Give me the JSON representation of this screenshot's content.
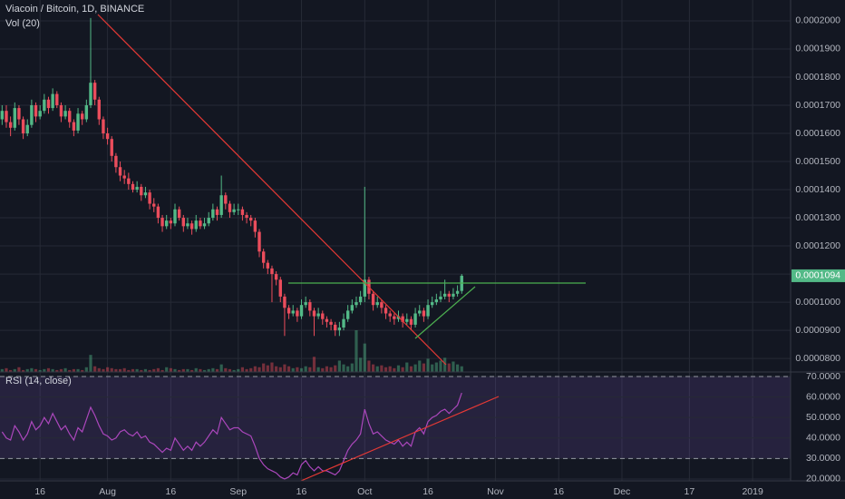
{
  "chart_data": [
    {
      "type": "candlestick",
      "title": "Viacoin / Bitcoin, 1D, BINANCE",
      "subtitle": "Vol (20)",
      "last_price_label": "0.0001094",
      "up_color": "#53b987",
      "down_color": "#eb4d5c",
      "x": [
        188,
        189,
        190,
        191,
        192,
        193,
        194,
        195,
        196,
        197,
        198,
        199,
        200,
        201,
        202,
        203,
        204,
        205,
        206,
        207,
        208,
        209,
        210,
        211,
        212,
        213,
        214,
        215,
        216,
        217,
        218,
        219,
        220,
        221,
        222,
        223,
        224,
        225,
        226,
        227,
        228,
        229,
        230,
        231,
        232,
        233,
        234,
        235,
        236,
        237,
        238,
        239,
        240,
        241,
        242,
        243,
        244,
        245,
        246,
        247,
        248,
        249,
        250,
        251,
        252,
        253,
        254,
        255,
        256,
        257,
        258,
        259,
        260,
        261,
        262,
        263,
        264,
        265,
        266,
        267,
        268,
        269,
        270,
        271,
        272,
        273,
        274,
        275,
        276,
        277,
        278,
        279,
        280,
        281,
        282,
        283,
        284,
        285,
        286,
        287,
        288,
        289,
        290,
        291,
        292,
        293,
        294,
        295,
        296,
        297
      ],
      "open": [
        0.000165,
        0.000168,
        0.000164,
        0.000162,
        0.000169,
        0.000165,
        0.00016,
        0.000163,
        0.00017,
        0.000166,
        0.000168,
        0.000172,
        0.000169,
        0.000174,
        0.00017,
        0.000166,
        0.000168,
        0.000164,
        0.000161,
        0.000167,
        0.000165,
        0.00017,
        0.000178,
        0.000172,
        0.000165,
        0.00016,
        0.000158,
        0.000152,
        0.000148,
        0.000145,
        0.000144,
        0.000142,
        0.00014,
        0.000141,
        0.000138,
        0.000139,
        0.000135,
        0.000134,
        0.00013,
        0.000127,
        0.000129,
        0.000128,
        0.000133,
        0.00013,
        0.000127,
        0.000128,
        0.000126,
        0.000129,
        0.000127,
        0.000128,
        0.00013,
        0.000133,
        0.000131,
        0.000138,
        0.000135,
        0.000132,
        0.000133,
        0.000133,
        0.000131,
        0.00013,
        0.000129,
        0.000125,
        0.000118,
        0.000114,
        0.000112,
        0.00011,
        0.000108,
        0.000102,
        9.8e-05,
        9.6e-05,
        9.7e-05,
        9.5e-05,
        9.9e-05,
        0.0001,
        9.7e-05,
        9.5e-05,
        9.6e-05,
        9.4e-05,
        9.3e-05,
        9.2e-05,
        9e-05,
        9.1e-05,
        9.4e-05,
        9.7e-05,
        9.9e-05,
        0.0001,
        0.000102,
        0.000108,
        0.000103,
        9.9e-05,
        0.0001,
        9.8e-05,
        9.6e-05,
        9.5e-05,
        9.4e-05,
        9.5e-05,
        9.3e-05,
        9.4e-05,
        9.2e-05,
        9.6e-05,
        9.7e-05,
        9.5e-05,
        9.9e-05,
        0.0001,
        0.000101,
        0.000102,
        0.000103,
        0.000102,
        0.000103,
        0.000104
      ],
      "high": [
        0.00017,
        0.00017,
        0.000166,
        0.000171,
        0.00017,
        0.000166,
        0.000165,
        0.000172,
        0.000171,
        0.00017,
        0.000174,
        0.000173,
        0.000176,
        0.000175,
        0.000171,
        0.00017,
        0.000169,
        0.000165,
        0.000169,
        0.000168,
        0.000172,
        0.000201,
        0.000179,
        0.000173,
        0.000166,
        0.000162,
        0.000159,
        0.000153,
        0.00015,
        0.000147,
        0.000146,
        0.000143,
        0.000143,
        0.000142,
        0.000141,
        0.00014,
        0.000137,
        0.000135,
        0.000131,
        0.000131,
        0.00013,
        0.000135,
        0.000134,
        0.000131,
        0.00013,
        0.000129,
        0.000131,
        0.00013,
        0.00013,
        0.000132,
        0.000135,
        0.000134,
        0.000145,
        0.000139,
        0.000136,
        0.000135,
        0.000135,
        0.000134,
        0.000132,
        0.000131,
        0.00013,
        0.000126,
        0.000119,
        0.000115,
        0.000113,
        0.000111,
        0.000109,
        0.000103,
        9.9e-05,
        9.9e-05,
        9.8e-05,
        0.000101,
        0.000102,
        0.000101,
        9.8e-05,
        9.8e-05,
        9.7e-05,
        9.5e-05,
        9.4e-05,
        9.3e-05,
        9.3e-05,
        9.6e-05,
        9.9e-05,
        0.000101,
        0.000102,
        0.000104,
        0.000141,
        0.000109,
        0.000104,
        0.000102,
        0.000101,
        9.9e-05,
        9.7e-05,
        9.6e-05,
        9.7e-05,
        9.6e-05,
        9.6e-05,
        9.5e-05,
        9.8e-05,
        9.9e-05,
        9.8e-05,
        0.000101,
        0.000102,
        0.000103,
        0.000104,
        0.000108,
        0.000104,
        0.000105,
        0.000106,
        0.00011
      ],
      "low": [
        0.000163,
        0.000162,
        0.000159,
        0.000161,
        0.000163,
        0.000158,
        0.000159,
        0.000162,
        0.000164,
        0.000165,
        0.000167,
        0.000167,
        0.000168,
        0.000169,
        0.000164,
        0.000165,
        0.000162,
        0.000159,
        0.00016,
        0.000163,
        0.000164,
        0.000169,
        0.00017,
        0.000163,
        0.000158,
        0.000156,
        0.00015,
        0.000146,
        0.000143,
        0.000142,
        0.00014,
        0.000139,
        0.000139,
        0.000136,
        0.000137,
        0.000133,
        0.000132,
        0.000128,
        0.000125,
        0.000126,
        0.000126,
        0.000127,
        0.000129,
        0.000125,
        0.000126,
        0.000124,
        0.000125,
        0.000126,
        0.000126,
        0.000127,
        0.000129,
        0.000129,
        0.00013,
        0.000133,
        0.00013,
        0.000131,
        0.000131,
        0.000129,
        0.000128,
        0.000127,
        0.000123,
        0.000116,
        0.000112,
        0.00011,
        0.0001,
        0.000106,
        0.0001,
        8.8e-05,
        9.4e-05,
        9.5e-05,
        9.3e-05,
        9.4e-05,
        9.8e-05,
        9.5e-05,
        8.8e-05,
        9.4e-05,
        9.2e-05,
        9.1e-05,
        9e-05,
        8.8e-05,
        8.8e-05,
        9e-05,
        9.3e-05,
        9.6e-05,
        9.8e-05,
        9.9e-05,
        0.0001,
        0.000101,
        9.7e-05,
        9.8e-05,
        9.6e-05,
        9.4e-05,
        9.3e-05,
        9.2e-05,
        9.3e-05,
        9.1e-05,
        9.2e-05,
        9e-05,
        9.1e-05,
        9.5e-05,
        9.3e-05,
        9.4e-05,
        9.8e-05,
        9.9e-05,
        0.0001,
        0.000101,
        0.0001,
        0.000101,
        0.000102,
        0.000103
      ],
      "close": [
        0.000168,
        0.000164,
        0.000162,
        0.000169,
        0.000165,
        0.00016,
        0.000163,
        0.00017,
        0.000166,
        0.000168,
        0.000172,
        0.000169,
        0.000174,
        0.00017,
        0.000166,
        0.000168,
        0.000164,
        0.000161,
        0.000167,
        0.000165,
        0.00017,
        0.000178,
        0.000172,
        0.000165,
        0.00016,
        0.000158,
        0.000152,
        0.000148,
        0.000145,
        0.000144,
        0.000142,
        0.00014,
        0.000141,
        0.000138,
        0.000139,
        0.000135,
        0.000134,
        0.00013,
        0.000127,
        0.000129,
        0.000128,
        0.000133,
        0.00013,
        0.000127,
        0.000128,
        0.000126,
        0.000129,
        0.000127,
        0.000128,
        0.00013,
        0.000133,
        0.000131,
        0.000138,
        0.000135,
        0.000132,
        0.000133,
        0.000133,
        0.000131,
        0.00013,
        0.000129,
        0.000125,
        0.000118,
        0.000114,
        0.000112,
        0.00011,
        0.000108,
        0.000102,
        9.8e-05,
        9.6e-05,
        9.7e-05,
        9.5e-05,
        9.9e-05,
        0.0001,
        9.7e-05,
        9.5e-05,
        9.6e-05,
        9.4e-05,
        9.3e-05,
        9.2e-05,
        9e-05,
        9.1e-05,
        9.4e-05,
        9.7e-05,
        9.9e-05,
        0.0001,
        0.000102,
        0.000108,
        0.000103,
        9.9e-05,
        0.0001,
        9.8e-05,
        9.6e-05,
        9.5e-05,
        9.4e-05,
        9.5e-05,
        9.3e-05,
        9.4e-05,
        9.2e-05,
        9.6e-05,
        9.7e-05,
        9.5e-05,
        9.9e-05,
        0.0001,
        0.000101,
        0.000102,
        0.000103,
        0.000102,
        0.000103,
        0.000104,
        0.0001094
      ],
      "volume": [
        3,
        4,
        2,
        3,
        5,
        2,
        3,
        4,
        3,
        2,
        3,
        4,
        3,
        2,
        3,
        4,
        2,
        3,
        3,
        2,
        5,
        18,
        6,
        4,
        3,
        5,
        4,
        3,
        3,
        4,
        2,
        3,
        3,
        2,
        3,
        2,
        3,
        4,
        2,
        5,
        4,
        3,
        2,
        3,
        3,
        2,
        4,
        3,
        2,
        3,
        4,
        3,
        8,
        4,
        3,
        2,
        3,
        5,
        3,
        4,
        6,
        5,
        9,
        7,
        10,
        6,
        5,
        8,
        6,
        4,
        5,
        4,
        6,
        5,
        16,
        5,
        4,
        6,
        5,
        7,
        12,
        8,
        6,
        9,
        44,
        15,
        30,
        12,
        8,
        6,
        7,
        5,
        6,
        4,
        7,
        5,
        10,
        6,
        8,
        12,
        9,
        14,
        8,
        10,
        12,
        15,
        9,
        11,
        8,
        6
      ],
      "xlim": [
        187.5,
        375
      ],
      "xticks": [
        {
          "value": 197,
          "label": "16"
        },
        {
          "value": 213,
          "label": "Aug"
        },
        {
          "value": 228,
          "label": "16"
        },
        {
          "value": 244,
          "label": "Sep"
        },
        {
          "value": 259,
          "label": "16"
        },
        {
          "value": 274,
          "label": "Oct"
        },
        {
          "value": 289,
          "label": "16"
        },
        {
          "value": 305,
          "label": "Nov"
        },
        {
          "value": 320,
          "label": "16"
        },
        {
          "value": 335,
          "label": "Dec"
        },
        {
          "value": 351,
          "label": "17"
        },
        {
          "value": 366,
          "label": "2019"
        }
      ],
      "ylim": [
        7.52e-05,
        0.0002074
      ],
      "yticks": [
        {
          "value": 8e-05,
          "label": "0.0000800"
        },
        {
          "value": 9e-05,
          "label": "0.0000900"
        },
        {
          "value": 0.0001,
          "label": "0.0001000"
        },
        {
          "value": 0.00011,
          "label": "0.0001100"
        },
        {
          "value": 0.00012,
          "label": "0.0001200"
        },
        {
          "value": 0.00013,
          "label": "0.0001300"
        },
        {
          "value": 0.00014,
          "label": "0.0001400"
        },
        {
          "value": 0.00015,
          "label": "0.0001500"
        },
        {
          "value": 0.00016,
          "label": "0.0001600"
        },
        {
          "value": 0.00017,
          "label": "0.0001700"
        },
        {
          "value": 0.00018,
          "label": "0.0001800"
        },
        {
          "value": 0.00019,
          "label": "0.0001900"
        },
        {
          "value": 0.0002,
          "label": "0.0002000"
        }
      ],
      "grid": true
    },
    {
      "type": "line",
      "title": "RSI (14, close)",
      "color": "#ab47bc",
      "values": [
        43,
        40,
        39,
        46,
        43,
        39,
        42,
        48,
        44,
        46,
        50,
        47,
        52,
        48,
        44,
        46,
        42,
        39,
        45,
        43,
        49,
        55,
        51,
        46,
        42,
        41,
        39,
        40,
        43,
        44,
        42,
        41,
        43,
        40,
        41,
        38,
        37,
        35,
        33,
        35,
        34,
        40,
        37,
        34,
        36,
        34,
        38,
        36,
        38,
        41,
        44,
        42,
        50,
        47,
        44,
        45,
        45,
        43,
        42,
        41,
        36,
        30,
        27,
        25,
        24,
        23,
        21,
        20,
        21,
        23,
        22,
        27,
        29,
        26,
        24,
        26,
        24,
        24,
        23,
        22,
        24,
        29,
        34,
        37,
        39,
        42,
        54,
        47,
        42,
        43,
        41,
        39,
        38,
        37,
        39,
        36,
        38,
        36,
        43,
        45,
        42,
        48,
        50,
        51,
        53,
        54,
        52,
        54,
        56,
        62
      ],
      "band": [
        30,
        70
      ],
      "ylim": [
        19.1,
        72.2
      ],
      "yticks": [
        {
          "value": 20,
          "label": "20.0000"
        },
        {
          "value": 30,
          "label": "30.0000"
        },
        {
          "value": 40,
          "label": "40.0000"
        },
        {
          "value": 50,
          "label": "50.0000"
        },
        {
          "value": 60,
          "label": "60.0000"
        },
        {
          "value": 70,
          "label": "70.0000"
        }
      ],
      "grid": true
    }
  ]
}
